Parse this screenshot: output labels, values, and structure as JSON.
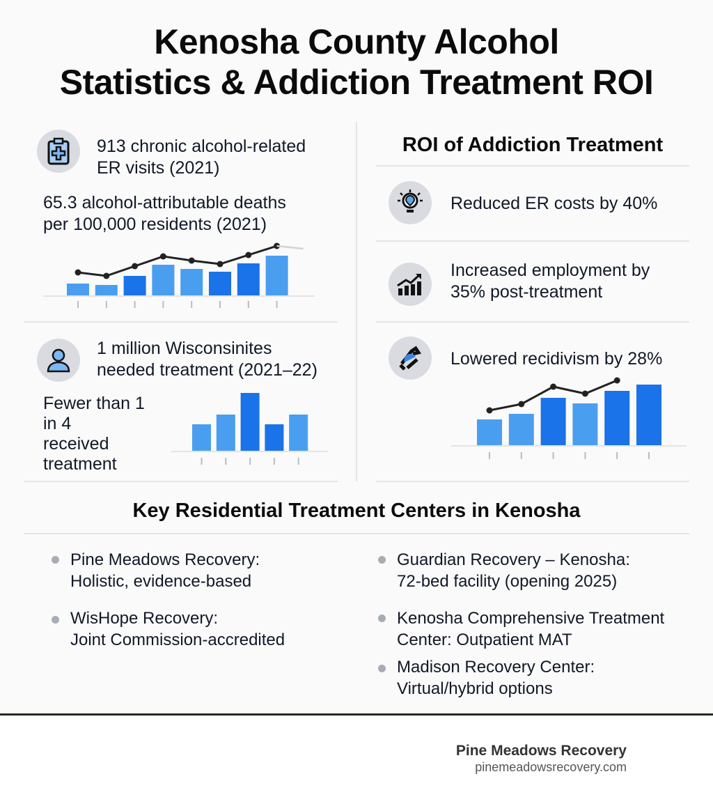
{
  "title": {
    "line1": "Kenosha County Alcohol",
    "line2": "Statistics & Addiction Treatment ROI"
  },
  "left": {
    "stat1": {
      "icon": "clipboard-medical-icon",
      "line1": "913 chronic alcohol-related",
      "line2": "ER visits (2021)"
    },
    "stat2": {
      "line1": "65.3 alcohol-attributable deaths",
      "line2": "per 100,000 residents (2021)"
    },
    "stat3": {
      "icon": "person-icon",
      "line1": "1 million Wisconsinites",
      "line2": "needed treatment (2021–22)"
    },
    "stat4": {
      "line1": "Fewer than 1",
      "line2": "in 4",
      "line3": "received",
      "line4": "treatment"
    }
  },
  "right": {
    "heading": "ROI of Addiction Treatment",
    "items": [
      {
        "icon": "lightbulb-icon",
        "line1": "Reduced ER costs by 40%",
        "line2": ""
      },
      {
        "icon": "growth-chart-icon",
        "line1": "Increased employment by",
        "line2": "35% post-treatment"
      },
      {
        "icon": "cycle-arrows-icon",
        "line1": "Lowered recidivism by 28%",
        "line2": ""
      }
    ]
  },
  "centers": {
    "heading": "Key Residential Treatment Centers in Kenosha",
    "left": [
      {
        "line1": "Pine Meadows Recovery:",
        "line2": "Holistic, evidence-based"
      },
      {
        "line1": "WisHope Recovery:",
        "line2": "Joint Commission-accredited"
      }
    ],
    "right": [
      {
        "line1": "Guardian Recovery – Kenosha:",
        "line2": "72-bed facility (opening 2025)"
      },
      {
        "line1": "Kenosha Comprehensive Treatment",
        "line2": "Center: Outpatient MAT"
      },
      {
        "line1": "Madison Recovery Center:",
        "line2": "Virtual/hybrid options"
      }
    ]
  },
  "footer": {
    "brand": "Pine Meadows Recovery",
    "url": "pinemeadowsrecovery.com"
  },
  "colors": {
    "bar_dark": "#1a73e8",
    "bar_light": "#4a9ef0",
    "line": "#222222",
    "footer_rule": "#1f2d1f"
  },
  "chart_data": [
    {
      "type": "bar",
      "name": "deaths-trend",
      "values": [
        17,
        15,
        28,
        44,
        38,
        34,
        46,
        57
      ],
      "line": [
        33,
        28,
        42,
        56,
        50,
        45,
        58,
        71
      ]
    },
    {
      "type": "bar",
      "name": "treatment-gap",
      "values": [
        38,
        52,
        83,
        38,
        52
      ]
    },
    {
      "type": "bar",
      "name": "recidivism-trend",
      "values": [
        37,
        45,
        68,
        60,
        78,
        87
      ],
      "line": [
        50,
        59,
        84,
        74,
        93
      ]
    }
  ]
}
